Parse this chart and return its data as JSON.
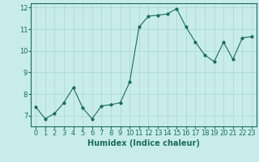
{
  "xlabel": "Humidex (Indice chaleur)",
  "ylabel": "",
  "x": [
    0,
    1,
    2,
    3,
    4,
    5,
    6,
    7,
    8,
    9,
    10,
    11,
    12,
    13,
    14,
    15,
    16,
    17,
    18,
    19,
    20,
    21,
    22,
    23
  ],
  "y": [
    7.4,
    6.85,
    7.1,
    7.6,
    8.3,
    7.35,
    6.85,
    7.45,
    7.5,
    7.6,
    8.55,
    11.1,
    11.6,
    11.65,
    11.7,
    11.95,
    11.1,
    10.4,
    9.8,
    9.5,
    10.4,
    9.6,
    10.6,
    10.65
  ],
  "line_color": "#1a6b5e",
  "bg_color": "#c8ecec",
  "grid_color": "#aad4d4",
  "ylim": [
    6.5,
    12.2
  ],
  "xlim": [
    -0.5,
    23.5
  ],
  "yticks": [
    7,
    8,
    9,
    10,
    11,
    12
  ],
  "xticks": [
    0,
    1,
    2,
    3,
    4,
    5,
    6,
    7,
    8,
    9,
    10,
    11,
    12,
    13,
    14,
    15,
    16,
    17,
    18,
    19,
    20,
    21,
    22,
    23
  ],
  "tick_fontsize": 6,
  "label_fontsize": 7
}
